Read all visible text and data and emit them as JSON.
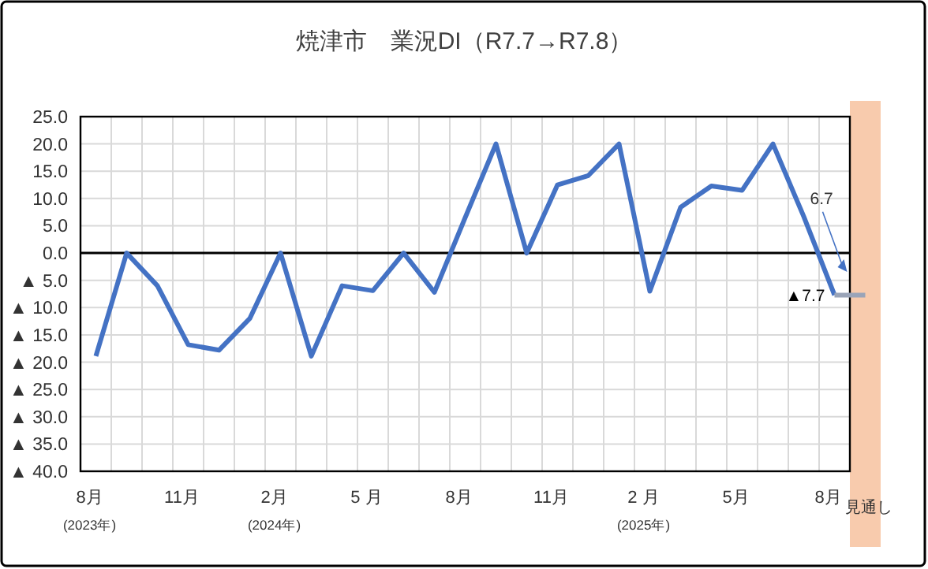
{
  "chart_data": {
    "type": "line",
    "title": "焼津市　業況DI（R7.7→R7.8）",
    "categories": [
      "8月\n(2023年)",
      null,
      null,
      "11月",
      null,
      null,
      "2月\n(2024年)",
      null,
      null,
      "5 月",
      null,
      null,
      "8月",
      null,
      null,
      "11月",
      null,
      null,
      "2 月\n(2025年)",
      null,
      null,
      "5月",
      null,
      null,
      "8月",
      "見通し"
    ],
    "series": [
      {
        "color": "#4472c4",
        "values": [
          -18.9,
          0,
          -6.0,
          -16.8,
          -17.8,
          -12.0,
          0,
          -18.9,
          -6.0,
          -6.9,
          0,
          -7.2,
          6.5,
          20.0,
          0,
          12.5,
          14.2,
          20.0,
          -7.0,
          8.4,
          12.3,
          11.5,
          20.0,
          6.7,
          -7.7,
          null
        ]
      },
      {
        "color": "#9aa4b8",
        "values": [
          null,
          null,
          null,
          null,
          null,
          null,
          null,
          null,
          null,
          null,
          null,
          null,
          null,
          null,
          null,
          null,
          null,
          null,
          null,
          null,
          null,
          null,
          null,
          null,
          -7.7,
          -7.7
        ]
      }
    ],
    "ylim": [
      -40,
      25
    ],
    "yticks": [
      {
        "value": 25,
        "label": "25.0"
      },
      {
        "value": 20,
        "label": "20.0"
      },
      {
        "value": 15,
        "label": "15.0"
      },
      {
        "value": 10,
        "label": "10.0"
      },
      {
        "value": 5,
        "label": "5.0"
      },
      {
        "value": 0,
        "label": "0.0"
      },
      {
        "value": -5,
        "label": "▲ 5.0"
      },
      {
        "value": -10,
        "label": "▲ 10.0"
      },
      {
        "value": -15,
        "label": "▲ 15.0"
      },
      {
        "value": -20,
        "label": "▲ 20.0"
      },
      {
        "value": -25,
        "label": "▲ 25.0"
      },
      {
        "value": -30,
        "label": "▲ 30.0"
      },
      {
        "value": -35,
        "label": "▲ 35.0"
      },
      {
        "value": -40,
        "label": "▲ 40.0"
      }
    ],
    "grid": true,
    "ref_lines": [
      {
        "axis": "y",
        "value": 0,
        "color": "#000000"
      }
    ],
    "bands": [
      {
        "axis": "x",
        "from": "見通し",
        "to": "見通し",
        "color": "#f8cbad"
      }
    ],
    "annotations": [
      "6.7",
      "▲7.7"
    ]
  }
}
